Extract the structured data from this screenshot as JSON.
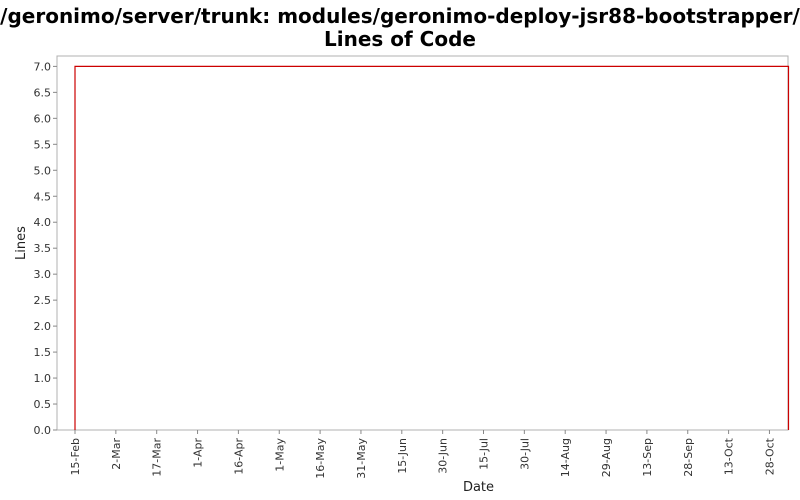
{
  "title_line1": "/geronimo/server/trunk: modules/geronimo-deploy-jsr88-bootstrapper/",
  "title_line2": "Lines of Code",
  "chart_data": {
    "type": "line",
    "title": "/geronimo/server/trunk: modules/geronimo-deploy-jsr88-bootstrapper/ Lines of Code",
    "xlabel": "Date",
    "ylabel": "Lines",
    "ylim": [
      0,
      7.2
    ],
    "yticks": [
      "0.0",
      "0.5",
      "1.0",
      "1.5",
      "2.0",
      "2.5",
      "3.0",
      "3.5",
      "4.0",
      "4.5",
      "5.0",
      "5.5",
      "6.0",
      "6.5",
      "7.0"
    ],
    "xticks": [
      "15-Feb",
      "2-Mar",
      "17-Mar",
      "1-Apr",
      "16-Apr",
      "1-May",
      "16-May",
      "31-May",
      "15-Jun",
      "30-Jun",
      "15-Jul",
      "30-Jul",
      "14-Aug",
      "29-Aug",
      "13-Sep",
      "28-Sep",
      "13-Oct",
      "28-Oct"
    ],
    "grid": false,
    "series": [
      {
        "color": "#cc0000",
        "points": [
          {
            "x": "15-Feb",
            "y": 0
          },
          {
            "x": "15-Feb",
            "y": 7
          },
          {
            "x": "4-Nov",
            "y": 7
          },
          {
            "x": "4-Nov",
            "y": 0
          }
        ]
      }
    ]
  }
}
